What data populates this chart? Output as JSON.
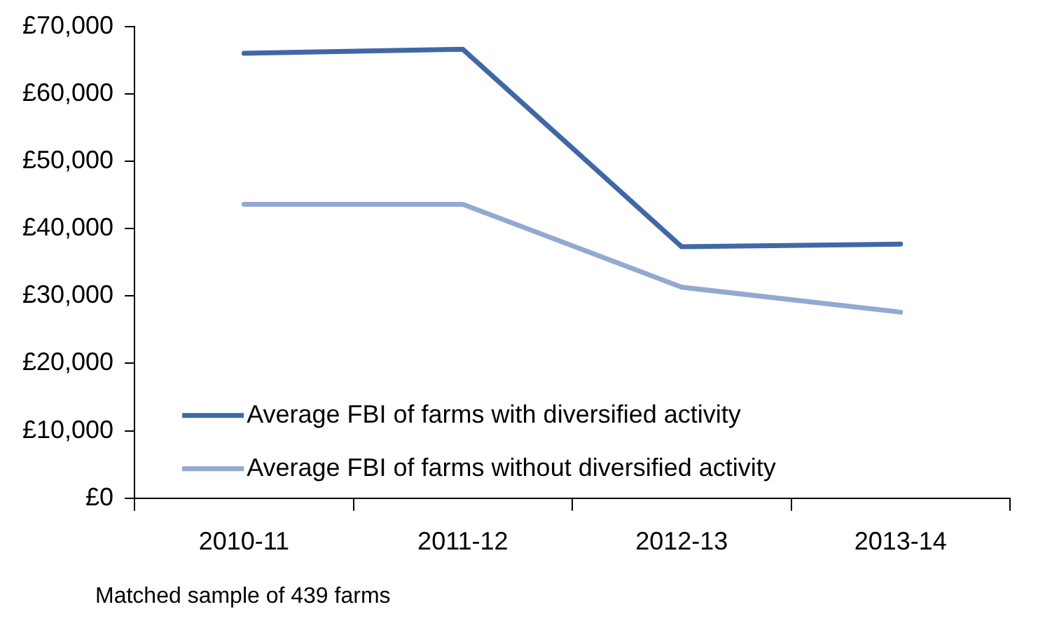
{
  "chart_data": {
    "type": "line",
    "categories": [
      "2010-11",
      "2011-12",
      "2012-13",
      "2013-14"
    ],
    "series": [
      {
        "name": "Average FBI of farms with diversified activity",
        "color": "#4068a6",
        "values": [
          66000,
          66600,
          37300,
          37700
        ]
      },
      {
        "name": "Average FBI of farms without diversified activity",
        "color": "#93a9d1",
        "values": [
          43600,
          43600,
          31300,
          27600
        ]
      }
    ],
    "ylim": [
      0,
      70000
    ],
    "yticks": [
      {
        "value": 0,
        "label": "£0"
      },
      {
        "value": 10000,
        "label": "£10,000"
      },
      {
        "value": 20000,
        "label": "£20,000"
      },
      {
        "value": 30000,
        "label": "£30,000"
      },
      {
        "value": 40000,
        "label": "£40,000"
      },
      {
        "value": 50000,
        "label": "£50,000"
      },
      {
        "value": 60000,
        "label": "£60,000"
      },
      {
        "value": 70000,
        "label": "£70,000"
      }
    ],
    "grid": false,
    "legend": "bottom left",
    "marker": "none",
    "line_style": "solid",
    "annotations": [
      "Matched sample of 439 farms"
    ]
  }
}
